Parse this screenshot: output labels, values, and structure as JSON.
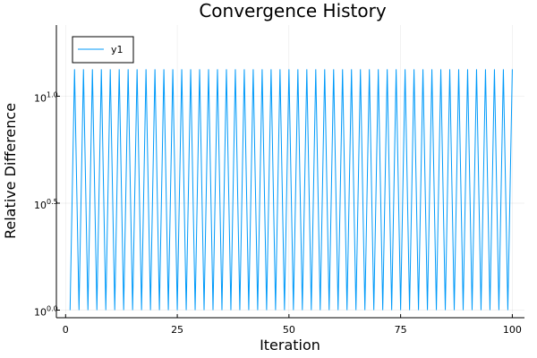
{
  "chart_data": {
    "type": "line",
    "title": "Convergence History",
    "xlabel": "Iteration",
    "ylabel": "Relative Difference",
    "xlim": [
      0,
      100
    ],
    "ylim_log10": [
      0,
      1.1
    ],
    "yscale": "log10",
    "xticks": [
      0,
      25,
      50,
      75,
      100
    ],
    "yticks": [
      {
        "base": "10",
        "exp": "0.0",
        "value_log10": 0.0
      },
      {
        "base": "10",
        "exp": "0.5",
        "value_log10": 0.5
      },
      {
        "base": "10",
        "exp": "1.0",
        "value_log10": 1.0
      }
    ],
    "grid": true,
    "legend_position": "top-left",
    "series": [
      {
        "name": "y1",
        "color": "#009af9",
        "pattern": "alternating: odd iterations at 10^0.0, even iterations at 10^1.126",
        "x_start": 1,
        "x_end": 100,
        "low_log10": 0.0,
        "high_log10": 1.126
      }
    ]
  }
}
